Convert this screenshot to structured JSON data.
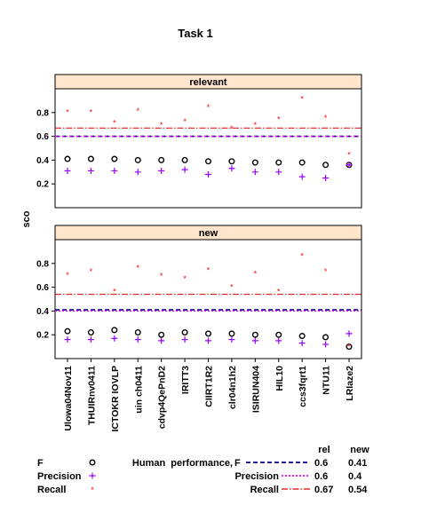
{
  "chart_data": {
    "type": "scatter",
    "title": "Task 1",
    "ylabel": "sco",
    "ylim": [
      0,
      1
    ],
    "yticks": [
      0.2,
      0.4,
      0.6,
      0.8
    ],
    "categories": [
      "Ulowa04Nov11",
      "THUIRnv0411",
      "ICTOKR IOVLP",
      "uin ch0411",
      "cdvp4QePnD2",
      "IRITT3",
      "CIIRT1R2",
      "clr04n1h2",
      "ISIRUN404",
      "HIL10",
      "ccs3fqrt1",
      "NTU11",
      "LRIaze2"
    ],
    "panels": [
      {
        "strip": "relevant",
        "series": [
          {
            "name": "F",
            "values": [
              0.41,
              0.41,
              0.41,
              0.4,
              0.4,
              0.4,
              0.39,
              0.39,
              0.38,
              0.38,
              0.38,
              0.36,
              0.36
            ]
          },
          {
            "name": "Precision",
            "values": [
              0.31,
              0.31,
              0.31,
              0.3,
              0.31,
              0.32,
              0.28,
              0.33,
              0.3,
              0.3,
              0.26,
              0.25,
              0.36
            ]
          },
          {
            "name": "Recall",
            "values": [
              0.81,
              0.81,
              0.72,
              0.82,
              0.7,
              0.73,
              0.85,
              0.67,
              0.7,
              0.75,
              0.92,
              0.76,
              0.45
            ]
          }
        ],
        "reference": {
          "F": 0.6,
          "Precision": 0.6,
          "Recall": 0.67
        }
      },
      {
        "strip": "new",
        "series": [
          {
            "name": "F",
            "values": [
              0.23,
              0.22,
              0.24,
              0.22,
              0.2,
              0.22,
              0.21,
              0.21,
              0.2,
              0.2,
              0.19,
              0.18,
              0.1
            ]
          },
          {
            "name": "Precision",
            "values": [
              0.16,
              0.16,
              0.17,
              0.16,
              0.15,
              0.16,
              0.15,
              0.16,
              0.15,
              0.15,
              0.13,
              0.12,
              0.21
            ]
          },
          {
            "name": "Recall",
            "values": [
              0.71,
              0.74,
              0.57,
              0.77,
              0.7,
              0.68,
              0.75,
              0.61,
              0.72,
              0.57,
              0.87,
              0.74,
              0.11
            ]
          }
        ],
        "reference": {
          "F": 0.41,
          "Precision": 0.4,
          "Recall": 0.54
        }
      }
    ],
    "legend": {
      "items": [
        {
          "label": "F",
          "symbol": "o"
        },
        {
          "label": "Precision",
          "symbol": "+"
        },
        {
          "label": "Recall",
          "symbol": "*"
        }
      ],
      "human": {
        "title": "Human  performance,",
        "col_rel": "rel",
        "col_new": "new",
        "rows": [
          {
            "label": "F",
            "rel": "0.6",
            "new": "0.41"
          },
          {
            "label": "Precision",
            "rel": "0.6",
            "new": "0.4"
          },
          {
            "label": "Recall",
            "rel": "0.67",
            "new": "0.54"
          }
        ]
      }
    },
    "colors": {
      "F": "#000000",
      "Precision": "#9900ff",
      "Recall": "#ff0000",
      "strip": "#ffe5cc",
      "F_line": "#000080",
      "Precision_line": "#ff00ff",
      "Recall_line": "#dd0000"
    }
  }
}
